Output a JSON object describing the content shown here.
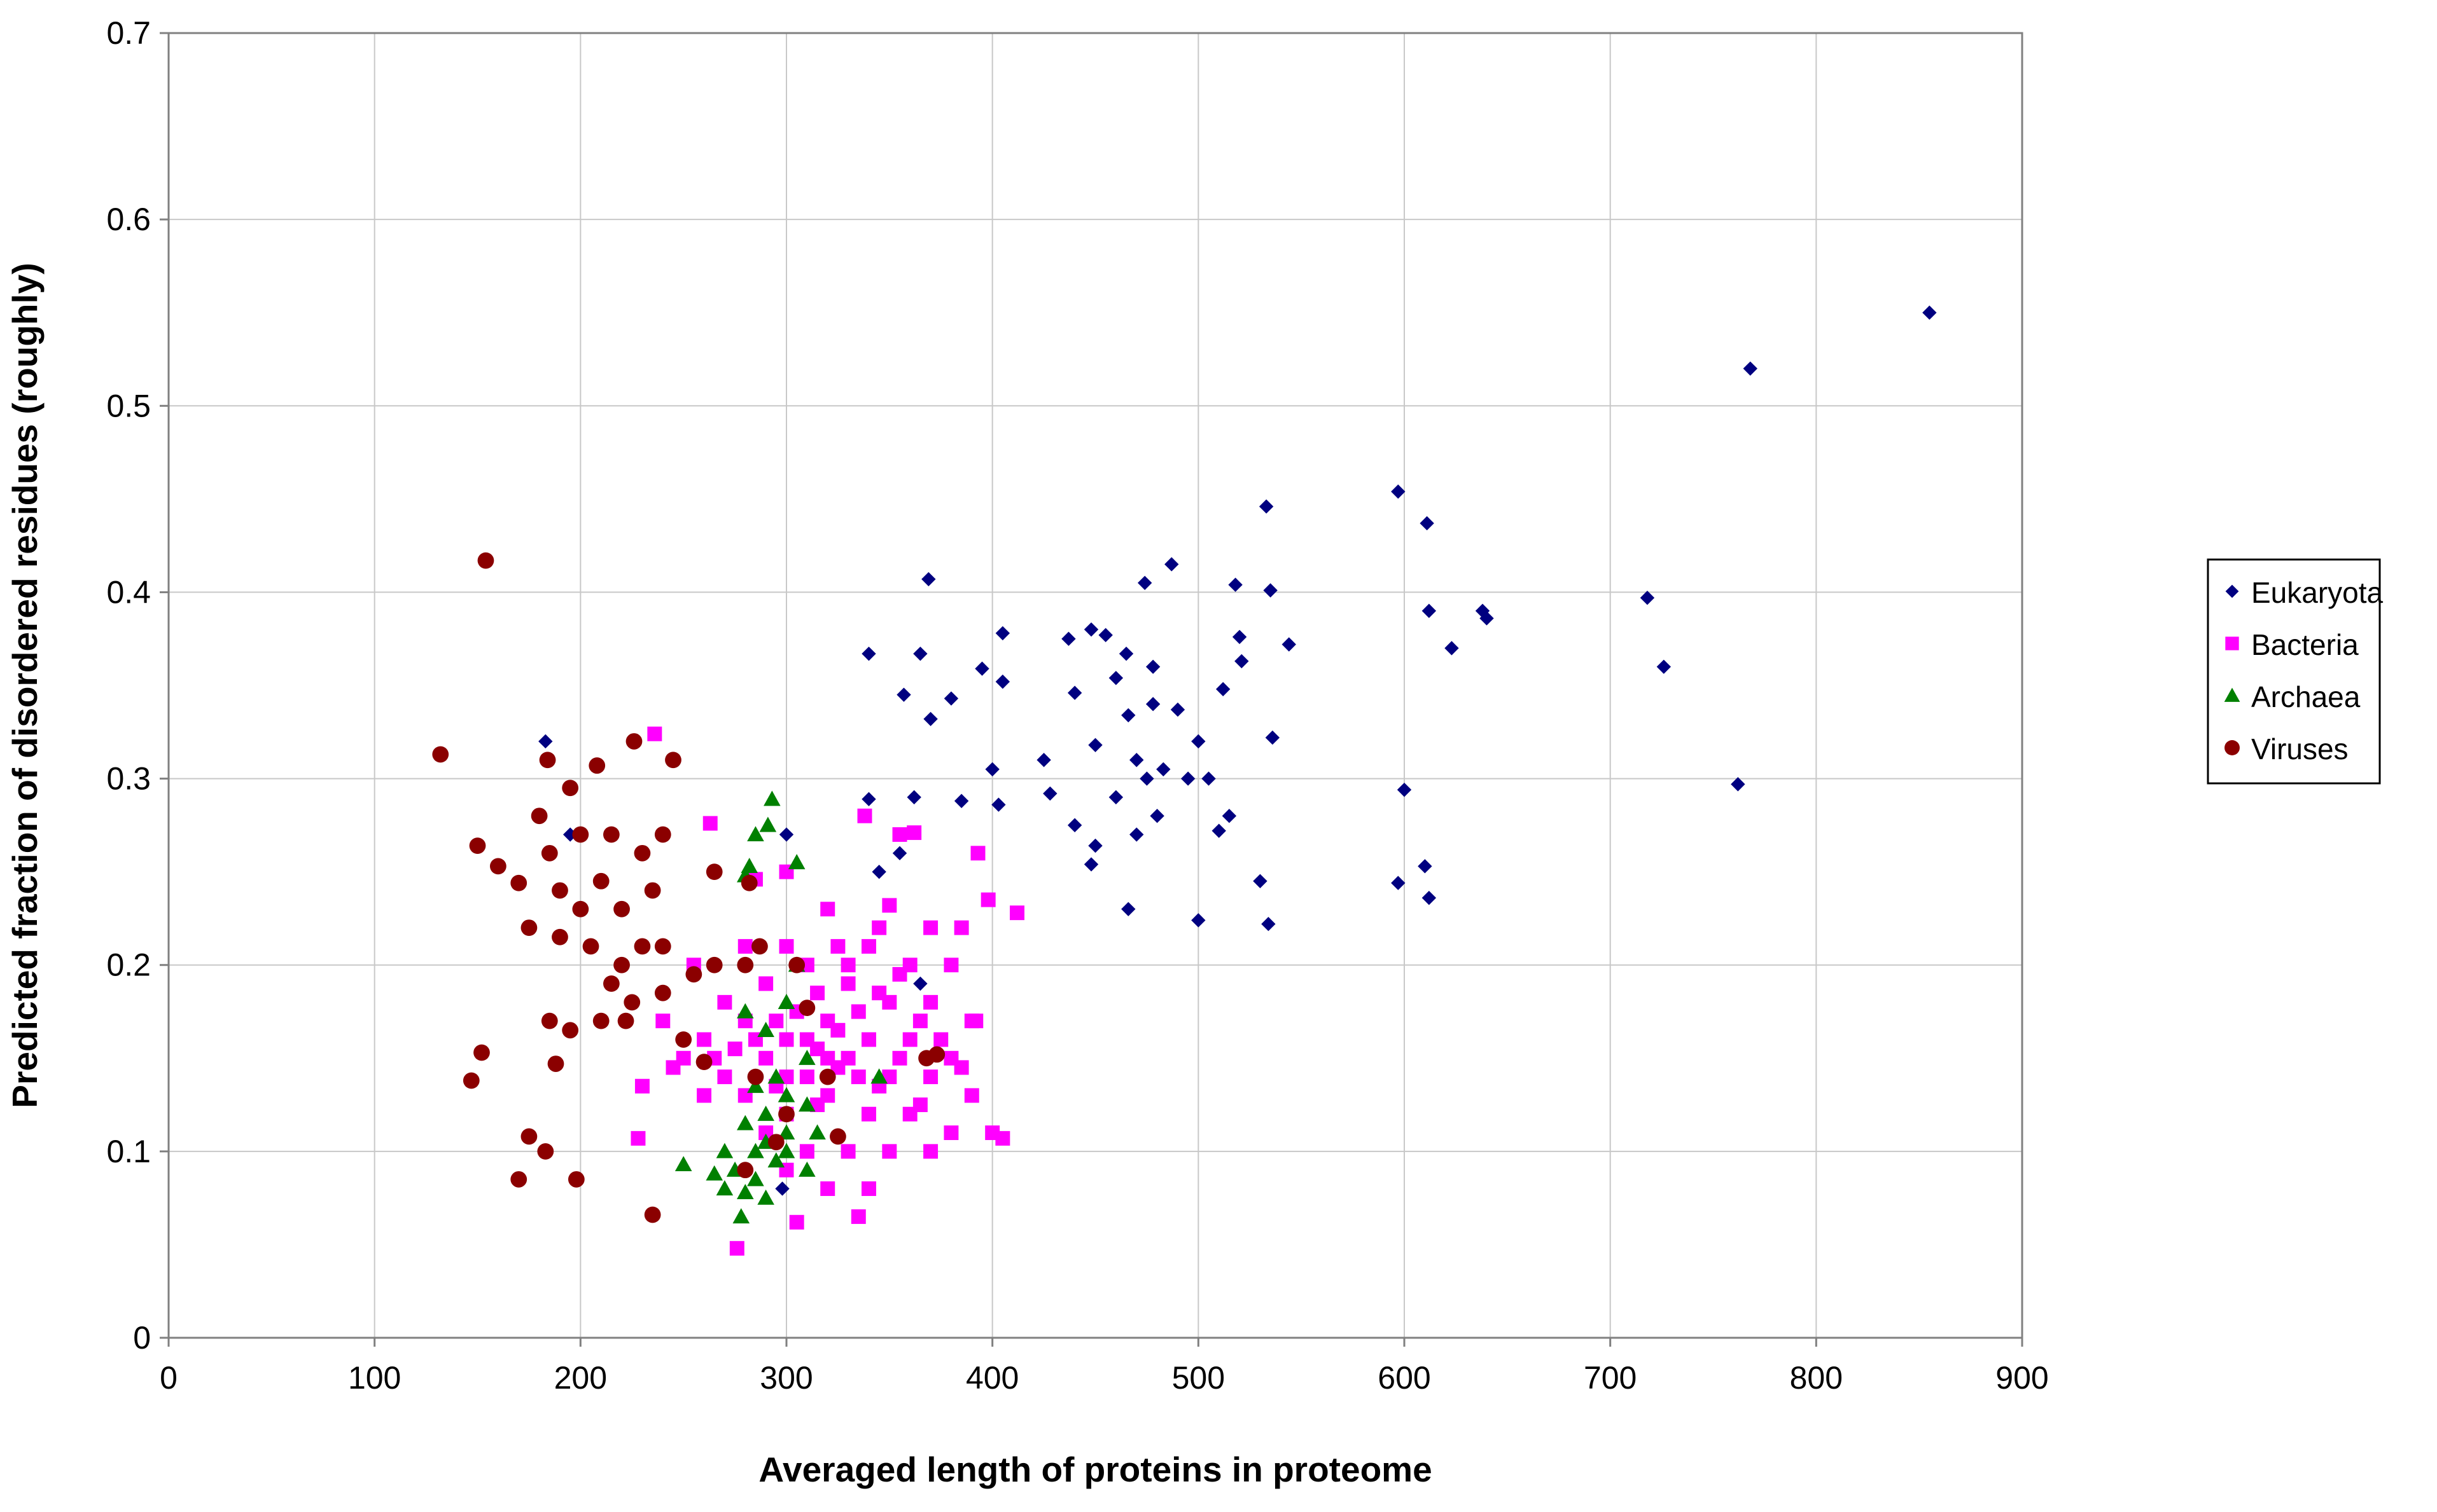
{
  "chart_data": {
    "type": "scatter",
    "title": "",
    "xlabel": "Averaged length of proteins in proteome",
    "ylabel": "Predicted fraction of disordered residues (roughly)",
    "xlim": [
      0,
      900
    ],
    "ylim": [
      0,
      0.7
    ],
    "x_ticks": [
      "0",
      "100",
      "200",
      "300",
      "400",
      "500",
      "600",
      "700",
      "800",
      "900"
    ],
    "y_ticks": [
      "0",
      "0.1",
      "0.2",
      "0.3",
      "0.4",
      "0.5",
      "0.6",
      "0.7"
    ],
    "grid": true,
    "legend_position": "right",
    "series": [
      {
        "name": "Eukaryota",
        "marker": "diamond",
        "color": "#000080",
        "points": [
          [
            855,
            0.55
          ],
          [
            768,
            0.52
          ],
          [
            597,
            0.454
          ],
          [
            533,
            0.446
          ],
          [
            611,
            0.437
          ],
          [
            487,
            0.415
          ],
          [
            369,
            0.407
          ],
          [
            474,
            0.405
          ],
          [
            518,
            0.404
          ],
          [
            535,
            0.401
          ],
          [
            718,
            0.397
          ],
          [
            612,
            0.39
          ],
          [
            638,
            0.39
          ],
          [
            640,
            0.386
          ],
          [
            405,
            0.378
          ],
          [
            448,
            0.38
          ],
          [
            455,
            0.377
          ],
          [
            437,
            0.375
          ],
          [
            520,
            0.376
          ],
          [
            544,
            0.372
          ],
          [
            623,
            0.37
          ],
          [
            340,
            0.367
          ],
          [
            365,
            0.367
          ],
          [
            465,
            0.367
          ],
          [
            521,
            0.363
          ],
          [
            395,
            0.359
          ],
          [
            478,
            0.36
          ],
          [
            726,
            0.36
          ],
          [
            405,
            0.352
          ],
          [
            460,
            0.354
          ],
          [
            512,
            0.348
          ],
          [
            357,
            0.345
          ],
          [
            380,
            0.343
          ],
          [
            440,
            0.346
          ],
          [
            478,
            0.34
          ],
          [
            490,
            0.337
          ],
          [
            370,
            0.332
          ],
          [
            466,
            0.334
          ],
          [
            500,
            0.32
          ],
          [
            536,
            0.322
          ],
          [
            450,
            0.318
          ],
          [
            400,
            0.305
          ],
          [
            425,
            0.31
          ],
          [
            470,
            0.31
          ],
          [
            483,
            0.305
          ],
          [
            495,
            0.3
          ],
          [
            600,
            0.294
          ],
          [
            762,
            0.297
          ],
          [
            340,
            0.289
          ],
          [
            362,
            0.29
          ],
          [
            385,
            0.288
          ],
          [
            403,
            0.286
          ],
          [
            428,
            0.292
          ],
          [
            460,
            0.29
          ],
          [
            475,
            0.3
          ],
          [
            505,
            0.3
          ],
          [
            515,
            0.28
          ],
          [
            480,
            0.28
          ],
          [
            440,
            0.275
          ],
          [
            470,
            0.27
          ],
          [
            510,
            0.272
          ],
          [
            450,
            0.264
          ],
          [
            355,
            0.26
          ],
          [
            610,
            0.253
          ],
          [
            448,
            0.254
          ],
          [
            530,
            0.245
          ],
          [
            597,
            0.244
          ],
          [
            612,
            0.236
          ],
          [
            466,
            0.23
          ],
          [
            500,
            0.224
          ],
          [
            534,
            0.222
          ],
          [
            183,
            0.32
          ],
          [
            195,
            0.27
          ],
          [
            300,
            0.27
          ],
          [
            345,
            0.25
          ],
          [
            365,
            0.19
          ],
          [
            298,
            0.08
          ]
        ]
      },
      {
        "name": "Bacteria",
        "marker": "square",
        "color": "#FF00FF",
        "points": [
          [
            236,
            0.324
          ],
          [
            263,
            0.276
          ],
          [
            355,
            0.27
          ],
          [
            362,
            0.271
          ],
          [
            393,
            0.26
          ],
          [
            338,
            0.28
          ],
          [
            398,
            0.235
          ],
          [
            412,
            0.228
          ],
          [
            285,
            0.246
          ],
          [
            300,
            0.25
          ],
          [
            320,
            0.23
          ],
          [
            350,
            0.232
          ],
          [
            370,
            0.22
          ],
          [
            385,
            0.22
          ],
          [
            280,
            0.21
          ],
          [
            300,
            0.21
          ],
          [
            325,
            0.21
          ],
          [
            345,
            0.22
          ],
          [
            360,
            0.2
          ],
          [
            380,
            0.2
          ],
          [
            255,
            0.2
          ],
          [
            270,
            0.18
          ],
          [
            290,
            0.19
          ],
          [
            310,
            0.2
          ],
          [
            330,
            0.19
          ],
          [
            350,
            0.18
          ],
          [
            370,
            0.18
          ],
          [
            390,
            0.17
          ],
          [
            240,
            0.17
          ],
          [
            260,
            0.16
          ],
          [
            280,
            0.17
          ],
          [
            300,
            0.16
          ],
          [
            320,
            0.17
          ],
          [
            340,
            0.16
          ],
          [
            360,
            0.16
          ],
          [
            380,
            0.15
          ],
          [
            392,
            0.17
          ],
          [
            250,
            0.15
          ],
          [
            270,
            0.14
          ],
          [
            290,
            0.15
          ],
          [
            310,
            0.14
          ],
          [
            330,
            0.15
          ],
          [
            350,
            0.14
          ],
          [
            370,
            0.14
          ],
          [
            390,
            0.13
          ],
          [
            260,
            0.13
          ],
          [
            280,
            0.13
          ],
          [
            300,
            0.12
          ],
          [
            320,
            0.13
          ],
          [
            340,
            0.12
          ],
          [
            360,
            0.12
          ],
          [
            380,
            0.11
          ],
          [
            400,
            0.11
          ],
          [
            405,
            0.107
          ],
          [
            290,
            0.11
          ],
          [
            310,
            0.1
          ],
          [
            330,
            0.1
          ],
          [
            350,
            0.1
          ],
          [
            370,
            0.1
          ],
          [
            300,
            0.09
          ],
          [
            320,
            0.08
          ],
          [
            340,
            0.08
          ],
          [
            335,
            0.065
          ],
          [
            305,
            0.062
          ],
          [
            276,
            0.048
          ],
          [
            228,
            0.107
          ],
          [
            230,
            0.135
          ],
          [
            245,
            0.145
          ],
          [
            265,
            0.15
          ],
          [
            315,
            0.155
          ],
          [
            325,
            0.165
          ],
          [
            335,
            0.175
          ],
          [
            345,
            0.185
          ],
          [
            355,
            0.195
          ],
          [
            325,
            0.145
          ],
          [
            345,
            0.135
          ],
          [
            365,
            0.125
          ],
          [
            315,
            0.125
          ],
          [
            295,
            0.135
          ],
          [
            305,
            0.175
          ],
          [
            315,
            0.185
          ],
          [
            330,
            0.2
          ],
          [
            340,
            0.21
          ],
          [
            375,
            0.16
          ],
          [
            385,
            0.145
          ],
          [
            365,
            0.17
          ],
          [
            300,
            0.14
          ],
          [
            310,
            0.16
          ],
          [
            320,
            0.15
          ],
          [
            335,
            0.14
          ],
          [
            355,
            0.15
          ],
          [
            275,
            0.155
          ],
          [
            285,
            0.16
          ],
          [
            295,
            0.17
          ]
        ]
      },
      {
        "name": "Archaea",
        "marker": "triangle",
        "color": "#008000",
        "points": [
          [
            293,
            0.289
          ],
          [
            285,
            0.27
          ],
          [
            291,
            0.275
          ],
          [
            305,
            0.255
          ],
          [
            282,
            0.253
          ],
          [
            280,
            0.248
          ],
          [
            305,
            0.2
          ],
          [
            300,
            0.18
          ],
          [
            280,
            0.175
          ],
          [
            290,
            0.165
          ],
          [
            310,
            0.15
          ],
          [
            295,
            0.14
          ],
          [
            285,
            0.135
          ],
          [
            300,
            0.13
          ],
          [
            310,
            0.125
          ],
          [
            290,
            0.12
          ],
          [
            280,
            0.115
          ],
          [
            300,
            0.11
          ],
          [
            315,
            0.11
          ],
          [
            270,
            0.1
          ],
          [
            285,
            0.1
          ],
          [
            295,
            0.095
          ],
          [
            275,
            0.09
          ],
          [
            285,
            0.085
          ],
          [
            265,
            0.088
          ],
          [
            270,
            0.08
          ],
          [
            280,
            0.078
          ],
          [
            290,
            0.075
          ],
          [
            278,
            0.065
          ],
          [
            300,
            0.1
          ],
          [
            345,
            0.14
          ],
          [
            250,
            0.093
          ],
          [
            310,
            0.09
          ],
          [
            290,
            0.105
          ]
        ]
      },
      {
        "name": "Viruses",
        "marker": "circle",
        "color": "#8B0000",
        "points": [
          [
            154,
            0.417
          ],
          [
            132,
            0.313
          ],
          [
            226,
            0.32
          ],
          [
            245,
            0.31
          ],
          [
            208,
            0.307
          ],
          [
            184,
            0.31
          ],
          [
            195,
            0.295
          ],
          [
            150,
            0.264
          ],
          [
            180,
            0.28
          ],
          [
            200,
            0.27
          ],
          [
            215,
            0.27
          ],
          [
            230,
            0.26
          ],
          [
            240,
            0.27
          ],
          [
            160,
            0.253
          ],
          [
            170,
            0.244
          ],
          [
            185,
            0.26
          ],
          [
            200,
            0.23
          ],
          [
            210,
            0.245
          ],
          [
            220,
            0.23
          ],
          [
            235,
            0.24
          ],
          [
            265,
            0.25
          ],
          [
            282,
            0.244
          ],
          [
            175,
            0.22
          ],
          [
            190,
            0.215
          ],
          [
            205,
            0.21
          ],
          [
            220,
            0.2
          ],
          [
            240,
            0.21
          ],
          [
            255,
            0.195
          ],
          [
            265,
            0.2
          ],
          [
            287,
            0.21
          ],
          [
            215,
            0.19
          ],
          [
            225,
            0.18
          ],
          [
            240,
            0.185
          ],
          [
            250,
            0.16
          ],
          [
            185,
            0.17
          ],
          [
            195,
            0.165
          ],
          [
            210,
            0.17
          ],
          [
            222,
            0.17
          ],
          [
            280,
            0.2
          ],
          [
            305,
            0.2
          ],
          [
            310,
            0.177
          ],
          [
            152,
            0.153
          ],
          [
            188,
            0.147
          ],
          [
            147,
            0.138
          ],
          [
            260,
            0.148
          ],
          [
            285,
            0.14
          ],
          [
            300,
            0.12
          ],
          [
            325,
            0.108
          ],
          [
            368,
            0.15
          ],
          [
            373,
            0.152
          ],
          [
            175,
            0.108
          ],
          [
            183,
            0.1
          ],
          [
            170,
            0.085
          ],
          [
            198,
            0.085
          ],
          [
            235,
            0.066
          ],
          [
            280,
            0.09
          ],
          [
            295,
            0.105
          ],
          [
            320,
            0.14
          ],
          [
            190,
            0.24
          ],
          [
            230,
            0.21
          ]
        ]
      }
    ]
  }
}
